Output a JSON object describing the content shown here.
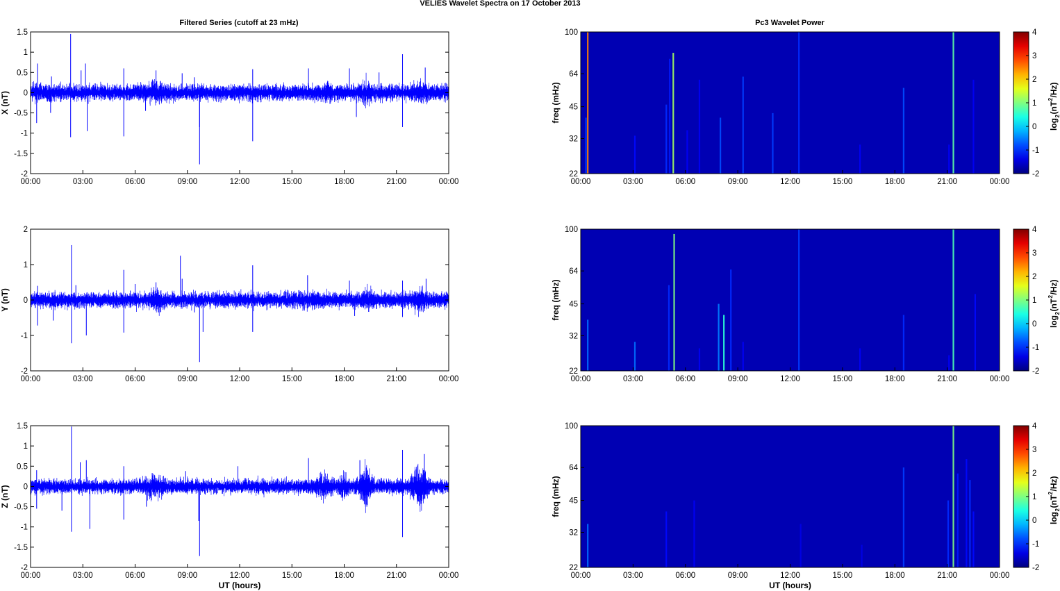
{
  "figure": {
    "title": "VELIES Wavelet Spectra on 17 October   2013",
    "left_title": "Filtered Series (cutoff at 23 mHz)",
    "right_title": "Pc3 Wavelet Power",
    "xlabel": "UT (hours)",
    "freq_label": "freq (mHz)",
    "colorbar_label": {
      "pre": "log",
      "sub": "2",
      "mid": "(nT",
      "sup": "2",
      "post": "/Hz)"
    }
  },
  "chart_data": [
    {
      "type": "line",
      "title": "Filtered Series (cutoff at 23 mHz)",
      "ylabel": "X (nT)",
      "xlabel": "",
      "x_ticks": [
        "00:00",
        "03:00",
        "06:00",
        "09:00",
        "12:00",
        "15:00",
        "18:00",
        "21:00",
        "00:00"
      ],
      "xlim": [
        0,
        24
      ],
      "ylim": [
        -2,
        1.5
      ],
      "y_ticks": [
        1.5,
        1,
        0.5,
        0,
        -0.5,
        -1,
        -1.5,
        -2
      ],
      "series": [
        {
          "color": "#0000ff"
        }
      ],
      "noise_amplitude": 0.1,
      "activity": [
        [
          6.2,
          8.2,
          1.6
        ],
        [
          16.6,
          17.4,
          1.4
        ],
        [
          18.9,
          19.7,
          1.8
        ],
        [
          21.7,
          22.9,
          1.5
        ]
      ],
      "spikes": [
        [
          0.4,
          0.72
        ],
        [
          0.35,
          -0.75
        ],
        [
          1.2,
          0.4
        ],
        [
          1.15,
          -0.5
        ],
        [
          2.3,
          1.45
        ],
        [
          2.3,
          -1.1
        ],
        [
          2.9,
          0.55
        ],
        [
          3.15,
          0.72
        ],
        [
          3.25,
          -0.95
        ],
        [
          5.35,
          0.6
        ],
        [
          5.35,
          -1.08
        ],
        [
          6.6,
          -0.45
        ],
        [
          7.2,
          0.55
        ],
        [
          8.7,
          0.48
        ],
        [
          9.4,
          0.38
        ],
        [
          9.7,
          -0.85
        ],
        [
          9.7,
          -1.77
        ],
        [
          12.75,
          0.58
        ],
        [
          12.75,
          -1.2
        ],
        [
          15.95,
          0.6
        ],
        [
          18.3,
          0.6
        ],
        [
          18.7,
          -0.6
        ],
        [
          20.0,
          0.5
        ],
        [
          21.35,
          0.95
        ],
        [
          21.35,
          -0.85
        ],
        [
          22.65,
          0.62
        ]
      ]
    },
    {
      "type": "heatmap",
      "title": "Pc3 Wavelet Power",
      "ylabel": "freq (mHz)",
      "xlabel": "",
      "x_ticks": [
        "00:00",
        "03:00",
        "06:00",
        "09:00",
        "12:00",
        "15:00",
        "18:00",
        "21:00",
        "00:00"
      ],
      "xlim": [
        0,
        24
      ],
      "ylim": [
        22,
        100
      ],
      "y_scale": "log",
      "y_ticks": [
        22,
        32,
        45,
        64,
        100
      ],
      "colorbar": {
        "range": [
          -2,
          4
        ],
        "ticks": [
          4,
          3,
          2,
          1,
          0,
          -1,
          -2
        ],
        "colormap": "jet"
      },
      "background_value": -1.7,
      "streaks": [
        [
          0.4,
          22,
          100,
          2.5
        ],
        [
          0.3,
          22,
          40,
          -0.9
        ],
        [
          3.1,
          22,
          33,
          -1.2
        ],
        [
          4.9,
          22,
          46,
          -1.0
        ],
        [
          5.1,
          22,
          75,
          -1.1
        ],
        [
          5.3,
          22,
          80,
          1.2
        ],
        [
          6.1,
          22,
          35,
          -1.3
        ],
        [
          6.8,
          22,
          60,
          -1.3
        ],
        [
          8.0,
          22,
          40,
          -0.8
        ],
        [
          9.3,
          22,
          62,
          -0.9
        ],
        [
          11.0,
          22,
          42,
          -0.9
        ],
        [
          12.5,
          22,
          100,
          -1.0
        ],
        [
          16.0,
          22,
          30,
          -1.3
        ],
        [
          18.5,
          22,
          55,
          -0.8
        ],
        [
          21.1,
          22,
          30,
          -1.3
        ],
        [
          21.35,
          22,
          100,
          0.8
        ],
        [
          22.5,
          22,
          60,
          -1.3
        ]
      ]
    },
    {
      "type": "line",
      "title": "",
      "ylabel": "Y (nT)",
      "xlabel": "",
      "x_ticks": [
        "00:00",
        "03:00",
        "06:00",
        "09:00",
        "12:00",
        "15:00",
        "18:00",
        "21:00",
        "00:00"
      ],
      "xlim": [
        0,
        24
      ],
      "ylim": [
        -2,
        2
      ],
      "y_ticks": [
        2,
        1,
        0,
        -1,
        -2
      ],
      "series": [
        {
          "color": "#0000ff"
        }
      ],
      "noise_amplitude": 0.11,
      "activity": [
        [
          6.6,
          7.9,
          1.7
        ],
        [
          15.8,
          16.8,
          1.3
        ],
        [
          18.9,
          19.8,
          1.8
        ],
        [
          21.8,
          22.9,
          1.7
        ]
      ],
      "spikes": [
        [
          0.4,
          0.4
        ],
        [
          0.4,
          -0.72
        ],
        [
          1.3,
          -0.58
        ],
        [
          2.35,
          1.55
        ],
        [
          2.35,
          -1.22
        ],
        [
          2.6,
          0.42
        ],
        [
          3.2,
          -1.0
        ],
        [
          5.35,
          0.85
        ],
        [
          5.35,
          -0.92
        ],
        [
          6.0,
          0.45
        ],
        [
          7.2,
          0.5
        ],
        [
          8.6,
          1.25
        ],
        [
          8.7,
          0.6
        ],
        [
          9.4,
          -0.35
        ],
        [
          9.7,
          -1.75
        ],
        [
          9.9,
          -0.9
        ],
        [
          12.75,
          0.98
        ],
        [
          12.75,
          -0.9
        ],
        [
          15.9,
          0.7
        ],
        [
          18.3,
          0.55
        ],
        [
          18.6,
          -0.45
        ],
        [
          21.35,
          0.55
        ],
        [
          21.35,
          -0.48
        ],
        [
          22.7,
          0.6
        ]
      ]
    },
    {
      "type": "heatmap",
      "title": "",
      "ylabel": "freq (mHz)",
      "xlabel": "",
      "x_ticks": [
        "00:00",
        "03:00",
        "06:00",
        "09:00",
        "12:00",
        "15:00",
        "18:00",
        "21:00",
        "00:00"
      ],
      "xlim": [
        0,
        24
      ],
      "ylim": [
        22,
        100
      ],
      "y_scale": "log",
      "y_ticks": [
        22,
        32,
        45,
        64,
        100
      ],
      "colorbar": {
        "range": [
          -2,
          4
        ],
        "ticks": [
          4,
          3,
          2,
          1,
          0,
          -1,
          -2
        ],
        "colormap": "jet"
      },
      "background_value": -1.7,
      "streaks": [
        [
          0.4,
          22,
          38,
          -0.6
        ],
        [
          3.1,
          22,
          30,
          -0.6
        ],
        [
          5.05,
          22,
          55,
          -1.0
        ],
        [
          5.35,
          22,
          95,
          1.0
        ],
        [
          6.8,
          22,
          28,
          -1.3
        ],
        [
          7.9,
          22,
          45,
          -0.5
        ],
        [
          8.2,
          22,
          40,
          0.5
        ],
        [
          8.6,
          22,
          65,
          -1.0
        ],
        [
          9.3,
          22,
          30,
          -1.3
        ],
        [
          12.5,
          22,
          100,
          -0.9
        ],
        [
          16.0,
          22,
          28,
          -1.3
        ],
        [
          18.5,
          22,
          40,
          -1.0
        ],
        [
          21.1,
          22,
          26,
          -1.3
        ],
        [
          21.35,
          22,
          100,
          0.7
        ],
        [
          22.6,
          22,
          50,
          -1.2
        ]
      ]
    },
    {
      "type": "line",
      "title": "",
      "ylabel": "Z (nT)",
      "xlabel": "UT (hours)",
      "x_ticks": [
        "00:00",
        "03:00",
        "06:00",
        "09:00",
        "12:00",
        "15:00",
        "18:00",
        "21:00",
        "00:00"
      ],
      "xlim": [
        0,
        24
      ],
      "ylim": [
        -2,
        1.5
      ],
      "y_ticks": [
        1.5,
        1,
        0.5,
        0,
        -0.5,
        -1,
        -1.5,
        -2
      ],
      "series": [
        {
          "color": "#0000ff"
        }
      ],
      "noise_amplitude": 0.09,
      "activity": [
        [
          6.4,
          7.9,
          2.0
        ],
        [
          16.3,
          17.3,
          1.9
        ],
        [
          17.6,
          18.4,
          2.2
        ],
        [
          18.7,
          19.7,
          3.0
        ],
        [
          21.6,
          23.0,
          3.0
        ]
      ],
      "spikes": [
        [
          0.35,
          0.4
        ],
        [
          0.35,
          -0.55
        ],
        [
          1.8,
          -0.6
        ],
        [
          2.35,
          1.48
        ],
        [
          2.35,
          -1.12
        ],
        [
          2.85,
          0.6
        ],
        [
          3.2,
          0.65
        ],
        [
          3.4,
          -1.05
        ],
        [
          5.35,
          0.5
        ],
        [
          5.35,
          -0.82
        ],
        [
          6.65,
          -0.5
        ],
        [
          8.9,
          0.38
        ],
        [
          9.65,
          -0.85
        ],
        [
          9.7,
          -1.72
        ],
        [
          11.9,
          0.5
        ],
        [
          15.95,
          0.7
        ],
        [
          18.1,
          0.35
        ],
        [
          18.9,
          0.65
        ],
        [
          19.3,
          -0.5
        ],
        [
          21.35,
          0.9
        ],
        [
          21.35,
          -1.25
        ],
        [
          22.6,
          0.8
        ]
      ]
    },
    {
      "type": "heatmap",
      "title": "",
      "ylabel": "freq (mHz)",
      "xlabel": "UT (hours)",
      "x_ticks": [
        "00:00",
        "03:00",
        "06:00",
        "09:00",
        "12:00",
        "15:00",
        "18:00",
        "21:00",
        "00:00"
      ],
      "xlim": [
        0,
        24
      ],
      "ylim": [
        22,
        100
      ],
      "y_scale": "log",
      "y_ticks": [
        22,
        32,
        45,
        64,
        100
      ],
      "colorbar": {
        "range": [
          -2,
          4
        ],
        "ticks": [
          4,
          3,
          2,
          1,
          0,
          -1,
          -2
        ],
        "colormap": "jet"
      },
      "background_value": -1.7,
      "streaks": [
        [
          0.4,
          22,
          35,
          -0.6
        ],
        [
          4.9,
          22,
          40,
          -1.2
        ],
        [
          6.5,
          22,
          45,
          -1.3
        ],
        [
          12.6,
          22,
          35,
          -1.4
        ],
        [
          16.1,
          22,
          28,
          -1.4
        ],
        [
          18.5,
          22,
          64,
          -0.9
        ],
        [
          21.05,
          22,
          45,
          -1.0
        ],
        [
          21.35,
          22,
          100,
          1.0
        ],
        [
          21.6,
          22,
          60,
          -1.1
        ],
        [
          22.1,
          22,
          70,
          -1.2
        ],
        [
          22.3,
          22,
          56,
          -1.0
        ],
        [
          22.5,
          22,
          40,
          -1.2
        ]
      ]
    }
  ]
}
